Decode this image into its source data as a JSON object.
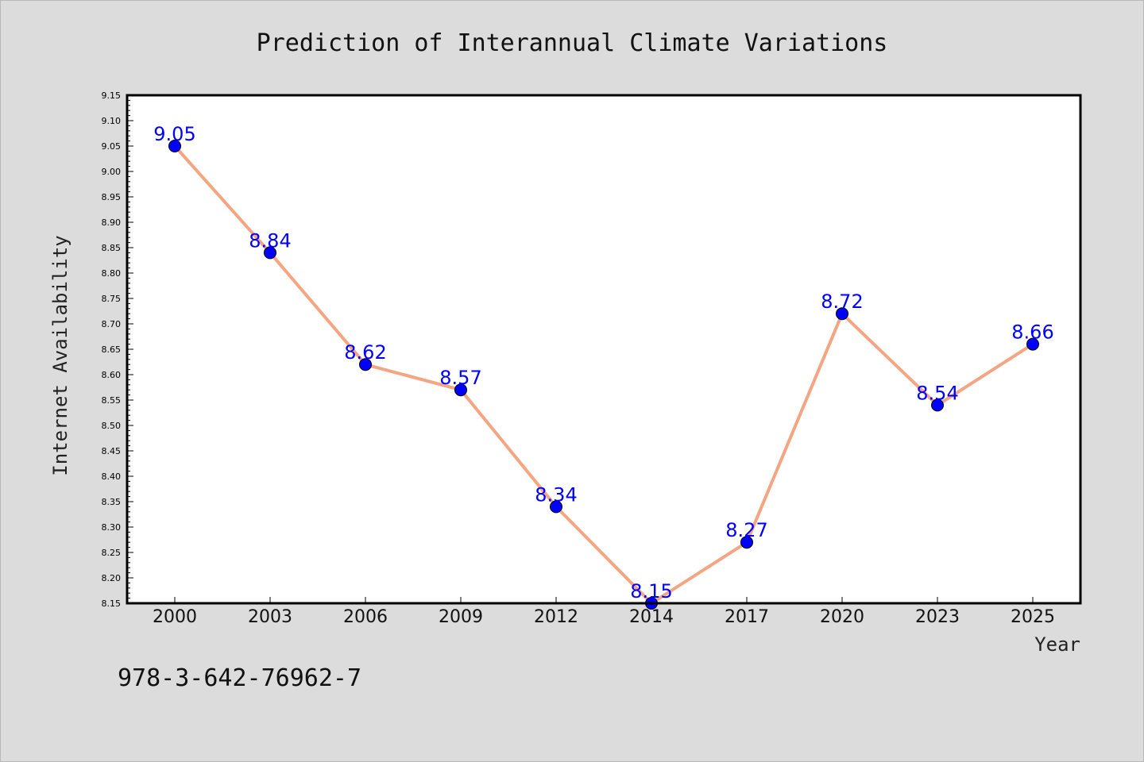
{
  "chart_data": {
    "type": "line",
    "title": "Prediction of Interannual Climate Variations",
    "xlabel": "Year",
    "ylabel": "Internet Availability",
    "categories": [
      "2000",
      "2003",
      "2006",
      "2009",
      "2012",
      "2014",
      "2017",
      "2020",
      "2023",
      "2025"
    ],
    "series": [
      {
        "values": [
          9.05,
          8.84,
          8.62,
          8.57,
          8.34,
          8.15,
          8.27,
          8.72,
          8.54,
          8.66
        ]
      }
    ],
    "ylim": [
      8.15,
      9.15
    ],
    "yticks": [
      "8.15",
      "8.20",
      "8.25",
      "8.30",
      "8.35",
      "8.40",
      "8.45",
      "8.50",
      "8.55",
      "8.60",
      "8.65",
      "8.70",
      "8.75",
      "8.80",
      "8.85",
      "8.90",
      "8.95",
      "9.00",
      "9.05",
      "9.10",
      "9.15"
    ],
    "data_labels": true,
    "grid": false,
    "line_color": "#f4a582",
    "marker_color": "#0000ff",
    "label_color": "#0000ff"
  },
  "footer": {
    "code": "978-3-642-76962-7"
  }
}
